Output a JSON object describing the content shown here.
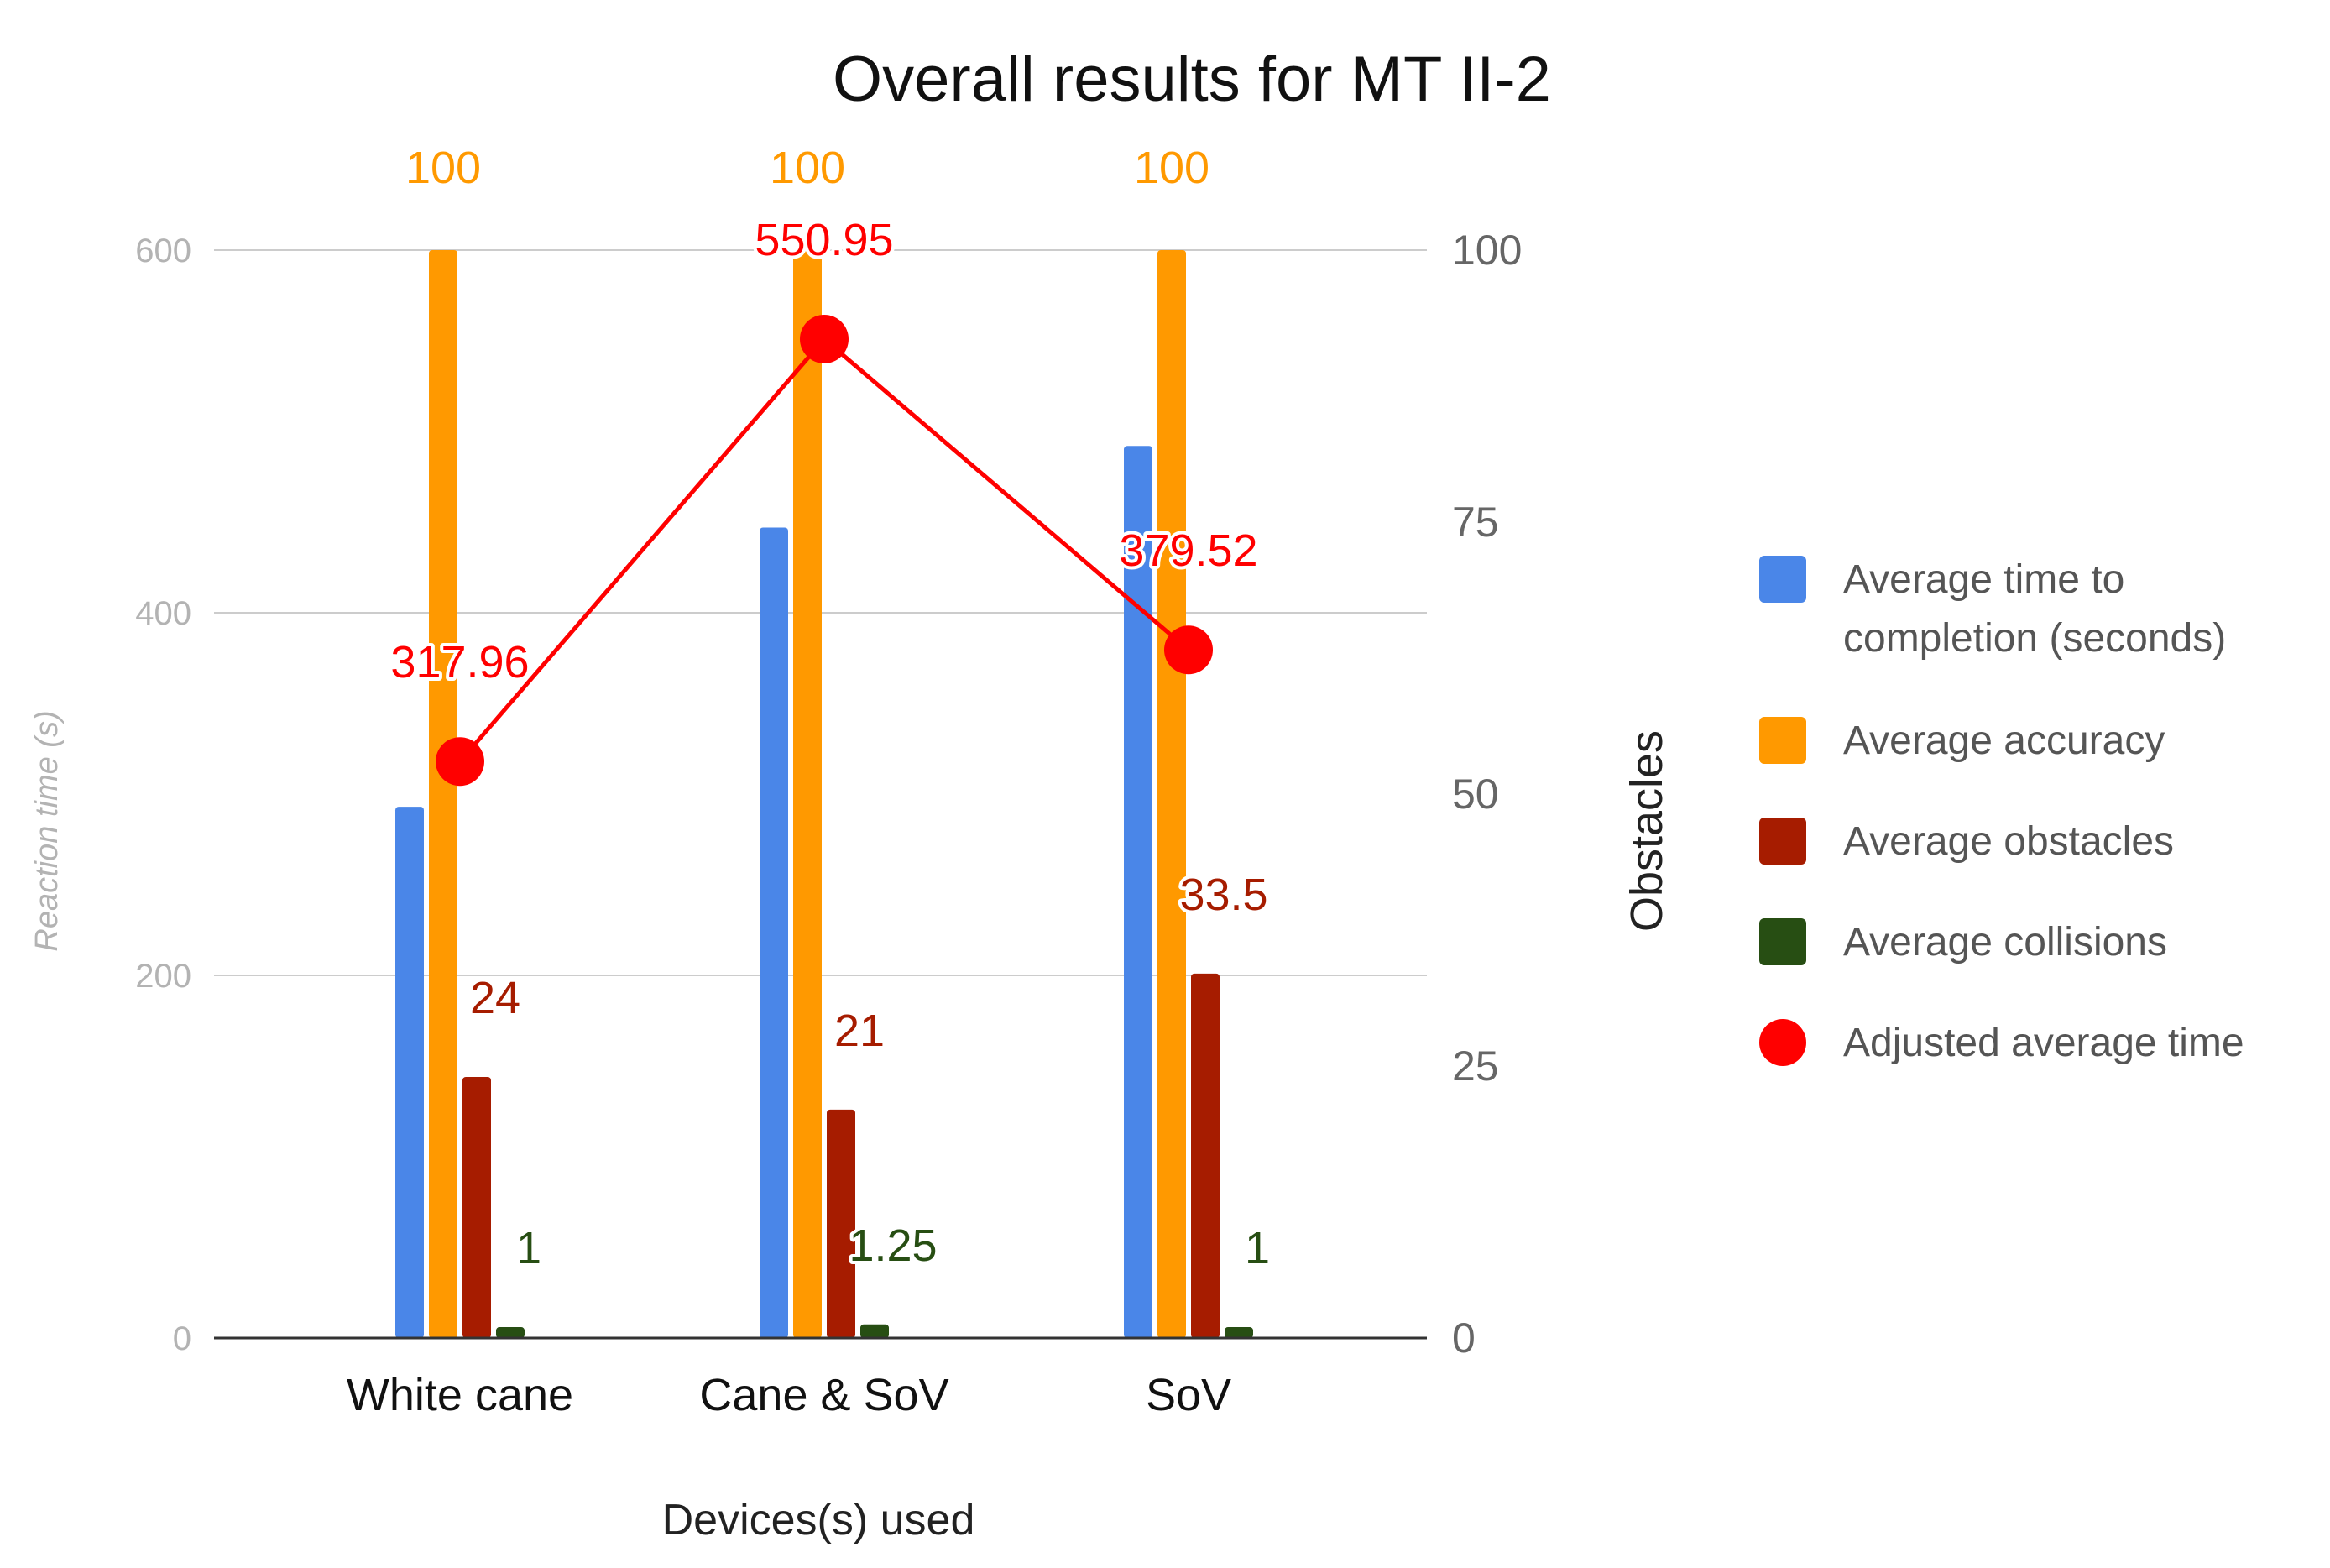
{
  "chart_data": {
    "type": "bar",
    "title": "Overall results for MT II-2",
    "xlabel": "Devices(s) used",
    "ylabel_left": "Reaction time (s)",
    "ylabel_right": "Obstacles",
    "ylim_left": [
      0,
      600
    ],
    "ylim_right": [
      0,
      100
    ],
    "yticks_left": [
      "0",
      "200",
      "400",
      "600"
    ],
    "yticks_right": [
      "0",
      "25",
      "50",
      "75",
      "100"
    ],
    "grid": true,
    "legend_position": "right",
    "categories": [
      "White cane",
      "Cane & SoV",
      "SoV"
    ],
    "series": [
      {
        "name": "Average time to completion (seconds)",
        "axis": "left",
        "kind": "bar",
        "color": "#4a86e8",
        "values": [
          293,
          447,
          492
        ],
        "labels": [
          "",
          "",
          ""
        ]
      },
      {
        "name": "Average accuracy",
        "axis": "right",
        "kind": "bar",
        "color": "#ff9900",
        "values": [
          100,
          100,
          100
        ],
        "labels": [
          "100",
          "100",
          "100"
        ]
      },
      {
        "name": "Average obstacles",
        "axis": "right",
        "kind": "bar",
        "color": "#a61c00",
        "values": [
          24,
          21,
          33.5
        ],
        "labels": [
          "24",
          "21",
          "33.5"
        ]
      },
      {
        "name": "Average collisions",
        "axis": "right",
        "kind": "bar",
        "color": "#274e13",
        "values": [
          1,
          1.25,
          1
        ],
        "labels": [
          "1",
          "1.25",
          "1"
        ]
      },
      {
        "name": "Adjusted average time",
        "axis": "left",
        "kind": "line",
        "color": "#ff0000",
        "values": [
          317.96,
          550.95,
          379.52
        ],
        "labels": [
          "317.96",
          "550.95",
          "379.52"
        ]
      }
    ],
    "legend": [
      {
        "lines": [
          "Average time to",
          "completion (seconds)"
        ],
        "color": "#4a86e8",
        "marker": "square"
      },
      {
        "lines": [
          "Average accuracy"
        ],
        "color": "#ff9900",
        "marker": "square"
      },
      {
        "lines": [
          "Average obstacles"
        ],
        "color": "#a61c00",
        "marker": "square"
      },
      {
        "lines": [
          "Average collisions"
        ],
        "color": "#274e13",
        "marker": "square"
      },
      {
        "lines": [
          "Adjusted average time"
        ],
        "color": "#ff0000",
        "marker": "circle"
      }
    ]
  }
}
